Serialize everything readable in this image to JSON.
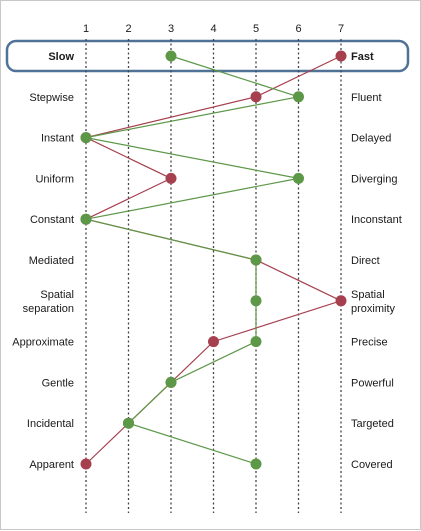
{
  "chart_data": {
    "type": "line",
    "scale_ticks": [
      "1",
      "2",
      "3",
      "4",
      "5",
      "6",
      "7"
    ],
    "rows": [
      {
        "left": "Slow",
        "right": "Fast",
        "highlight": true
      },
      {
        "left": "Stepwise",
        "right": "Fluent"
      },
      {
        "left": "Instant",
        "right": "Delayed"
      },
      {
        "left": "Uniform",
        "right": "Diverging"
      },
      {
        "left": "Constant",
        "right": "Inconstant"
      },
      {
        "left": "Mediated",
        "right": "Direct"
      },
      {
        "left": [
          "Spatial",
          "separation"
        ],
        "right": [
          "Spatial",
          "proximity"
        ]
      },
      {
        "left": "Approximate",
        "right": "Precise"
      },
      {
        "left": "Gentle",
        "right": "Powerful"
      },
      {
        "left": "Incidental",
        "right": "Targeted"
      },
      {
        "left": "Apparent",
        "right": "Covered"
      }
    ],
    "series": [
      {
        "color": "#a6404f",
        "values": [
          7,
          5,
          1,
          3,
          1,
          5,
          7,
          4,
          3,
          2,
          1
        ]
      },
      {
        "color": "#5d9848",
        "values": [
          3,
          6,
          1,
          6,
          1,
          5,
          5,
          5,
          3,
          2,
          5
        ]
      }
    ],
    "xlim": [
      1,
      7
    ],
    "grid": "dotted vertical",
    "highlight_color": "#4f7296"
  }
}
